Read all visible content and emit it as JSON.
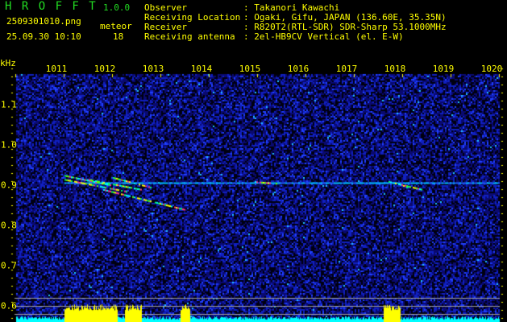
{
  "header": {
    "app_name": "H R O F F T",
    "version": "1.0.0",
    "filename": "2509301010.png",
    "datetime": "25.09.30 10:10",
    "count_label": "meteor",
    "count_value": "18",
    "info": [
      {
        "label": "Observer",
        "value": ": Takanori Kawachi"
      },
      {
        "label": "Receiving Location",
        "value": ": Ogaki, Gifu, JAPAN (136.60E, 35.35N)"
      },
      {
        "label": "Receiver",
        "value": ": R820T2(RTL-SDR) SDR-Sharp 53.1000MHz"
      },
      {
        "label": "Receiving antenna",
        "value": ": 2el-HB9CV Vertical (el. E-W)"
      }
    ]
  },
  "colors": {
    "text": "#ffff00",
    "title": "#22dd22",
    "background_noise": "#1020c0",
    "power_bars": "#00ffff",
    "echo_bars": "#ffff00",
    "level_lines": "#a0a0a0"
  },
  "chart_data": {
    "type": "heatmap",
    "ylabel": "kHz",
    "x_ticks": [
      "1011",
      "1012",
      "1013",
      "1014",
      "1015",
      "1016",
      "1017",
      "1018",
      "1019",
      "1020"
    ],
    "x_tick_values": [
      11,
      12,
      13,
      14,
      15,
      16,
      17,
      18,
      19,
      20
    ],
    "xlim": [
      10,
      20
    ],
    "y_ticks": [
      "1.1",
      "1.0",
      "0.9",
      "0.8",
      "0.7",
      "0.6"
    ],
    "y_tick_values": [
      1.1,
      1.0,
      0.9,
      0.8,
      0.7,
      0.6
    ],
    "ylim": [
      0.57,
      1.21
    ],
    "carrier": {
      "freq_khz": 0.907,
      "from_min": 11,
      "to_min": 20
    },
    "echoes": [
      {
        "t0": 11.0,
        "f0": 0.925,
        "t1": 12.0,
        "f1": 0.9
      },
      {
        "t0": 11.0,
        "f0": 0.915,
        "t1": 12.3,
        "f1": 0.885
      },
      {
        "t0": 11.5,
        "f0": 0.915,
        "t1": 12.6,
        "f1": 0.89
      },
      {
        "t0": 12.0,
        "f0": 0.92,
        "t1": 12.8,
        "f1": 0.895
      },
      {
        "t0": 11.8,
        "f0": 0.89,
        "t1": 13.5,
        "f1": 0.84
      },
      {
        "t0": 14.9,
        "f0": 0.91,
        "t1": 15.4,
        "f1": 0.905
      },
      {
        "t0": 17.7,
        "f0": 0.91,
        "t1": 18.4,
        "f1": 0.89
      },
      {
        "t0": 17.9,
        "f0": 0.905,
        "t1": 18.1,
        "f1": 0.895
      }
    ],
    "echo_power_segments": [
      [
        11.0,
        12.1
      ],
      [
        12.25,
        12.6
      ],
      [
        13.4,
        13.6
      ],
      [
        17.6,
        17.95
      ]
    ]
  }
}
